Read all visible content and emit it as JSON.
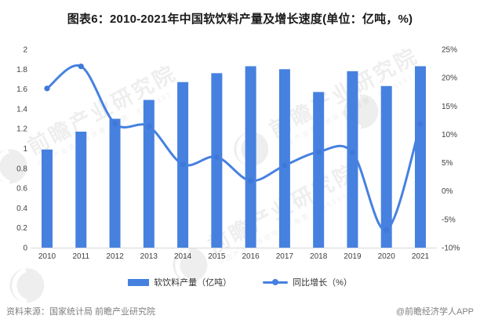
{
  "title": "图表6：2010-2021年中国软饮料产量及增长速度(单位：亿吨，%)",
  "chart_data": {
    "type": "bar",
    "subtype": "bar-line-combo",
    "categories": [
      "2010",
      "2011",
      "2012",
      "2013",
      "2014",
      "2015",
      "2016",
      "2017",
      "2018",
      "2019",
      "2020",
      "2021"
    ],
    "series": [
      {
        "name": "软饮料产量（亿吨）",
        "type": "bar",
        "axis": "left",
        "values": [
          0.99,
          1.17,
          1.3,
          1.49,
          1.67,
          1.76,
          1.83,
          1.8,
          1.57,
          1.78,
          1.63,
          1.83
        ]
      },
      {
        "name": "同比增长（%）",
        "type": "line",
        "axis": "right",
        "values": [
          18.1,
          22.0,
          11.9,
          11.4,
          4.7,
          6.0,
          1.8,
          4.5,
          6.9,
          6.8,
          -6.9,
          11.8
        ]
      }
    ],
    "left_axis": {
      "min": 0,
      "max": 2,
      "step": 0.2,
      "ticks": [
        "0",
        "0.2",
        "0.4",
        "0.6",
        "0.8",
        "1",
        "1.2",
        "1.4",
        "1.6",
        "1.8",
        "2"
      ]
    },
    "right_axis": {
      "min": -10,
      "max": 25,
      "step": 5,
      "ticks": [
        "-10%",
        "-5%",
        "0%",
        "5%",
        "10%",
        "15%",
        "20%",
        "25%"
      ]
    },
    "grid": false,
    "legend_position": "bottom",
    "title": "图表6：2010-2021年中国软饮料产量及增长速度(单位：亿吨，%)"
  },
  "legend": {
    "bar_label": "软饮料产量（亿吨）",
    "line_label": "同比增长（%）"
  },
  "footer": {
    "source": "资料来源：国家统计局 前瞻产业研究院",
    "credit": "@前瞻经济学人APP"
  },
  "watermark": {
    "text": "前瞻产业研究院",
    "subtext": "中国产业咨询领导者（股票：839599）"
  },
  "colors": {
    "accent": "#4681e0",
    "marker": "#3f78d8",
    "axis_line": "#d9d9d9",
    "tick_text": "#404040",
    "footer_text": "#7f7f7f"
  }
}
